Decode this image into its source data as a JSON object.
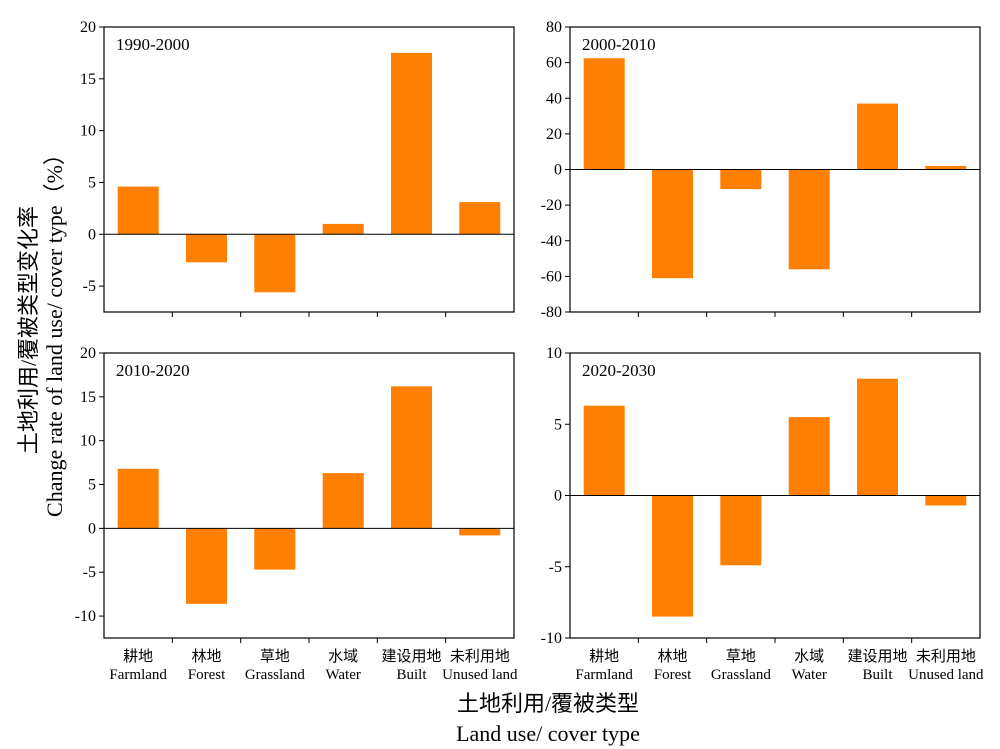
{
  "figure": {
    "ylabel_cn": "土地利用/覆被类型变化率",
    "ylabel_en": "Change rate of land use/ cover type（%）",
    "xlabel_cn": "土地利用/覆被类型",
    "xlabel_en": "Land use/ cover type",
    "bar_color": "#ff8000"
  },
  "chart_data": [
    {
      "type": "bar",
      "title": "1990-2000",
      "categories_cn": [
        "耕地",
        "林地",
        "草地",
        "水域",
        "建设用地",
        "未利用地"
      ],
      "categories_en": [
        "Farmland",
        "Forest",
        "Grassland",
        "Water",
        "Built",
        "Unused land"
      ],
      "values": [
        4.6,
        -2.7,
        -5.6,
        1.0,
        17.5,
        3.1
      ],
      "ylim": [
        -7.5,
        20
      ],
      "yticks": [
        -5,
        0,
        5,
        10,
        15,
        20
      ],
      "show_x_labels": false
    },
    {
      "type": "bar",
      "title": "2000-2010",
      "categories_cn": [
        "耕地",
        "林地",
        "草地",
        "水域",
        "建设用地",
        "未利用地"
      ],
      "categories_en": [
        "Farmland",
        "Forest",
        "Grassland",
        "Water",
        "Built",
        "Unused land"
      ],
      "values": [
        62.5,
        -61.0,
        -11.0,
        -56.0,
        37.0,
        2.0
      ],
      "ylim": [
        -80,
        80
      ],
      "yticks": [
        -80,
        -60,
        -40,
        -20,
        0,
        20,
        40,
        60,
        80
      ],
      "show_x_labels": false
    },
    {
      "type": "bar",
      "title": "2010-2020",
      "categories_cn": [
        "耕地",
        "林地",
        "草地",
        "水域",
        "建设用地",
        "未利用地"
      ],
      "categories_en": [
        "Farmland",
        "Forest",
        "Grassland",
        "Water",
        "Built",
        "Unused land"
      ],
      "values": [
        6.8,
        -8.6,
        -4.7,
        6.3,
        16.2,
        -0.8
      ],
      "ylim": [
        -12.5,
        20
      ],
      "yticks": [
        -10,
        -5,
        0,
        5,
        10,
        15,
        20
      ],
      "show_x_labels": true
    },
    {
      "type": "bar",
      "title": "2020-2030",
      "categories_cn": [
        "耕地",
        "林地",
        "草地",
        "水域",
        "建设用地",
        "未利用地"
      ],
      "categories_en": [
        "Farmland",
        "Forest",
        "Grassland",
        "Water",
        "Built",
        "Unused land"
      ],
      "values": [
        6.3,
        -8.5,
        -4.9,
        5.5,
        8.2,
        -0.7
      ],
      "ylim": [
        -10,
        10
      ],
      "yticks": [
        -10,
        -5,
        0,
        5,
        10
      ],
      "show_x_labels": true
    }
  ]
}
